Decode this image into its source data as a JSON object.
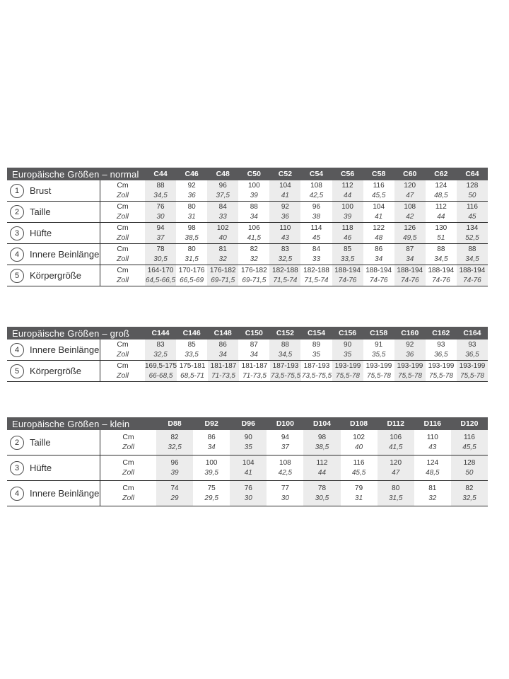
{
  "colors": {
    "header_bar": "#59595b",
    "header_text": "#ffffff",
    "stripe": "#ececec",
    "line": "#2b2b2b",
    "text": "#333333"
  },
  "unit_labels": {
    "cm": "Cm",
    "zoll": "Zoll"
  },
  "tables": [
    {
      "title": "Europäische Größen – normal",
      "columns": [
        "C44",
        "C46",
        "C48",
        "C50",
        "C52",
        "C54",
        "C56",
        "C58",
        "C60",
        "C62",
        "C64"
      ],
      "rows": [
        {
          "number": "1",
          "label": "Brust",
          "cm": [
            "88",
            "92",
            "96",
            "100",
            "104",
            "108",
            "112",
            "116",
            "120",
            "124",
            "128"
          ],
          "zoll": [
            "34,5",
            "36",
            "37,5",
            "39",
            "41",
            "42,5",
            "44",
            "45,5",
            "47",
            "48,5",
            "50"
          ]
        },
        {
          "number": "2",
          "label": "Taille",
          "cm": [
            "76",
            "80",
            "84",
            "88",
            "92",
            "96",
            "100",
            "104",
            "108",
            "112",
            "116"
          ],
          "zoll": [
            "30",
            "31",
            "33",
            "34",
            "36",
            "38",
            "39",
            "41",
            "42",
            "44",
            "45"
          ]
        },
        {
          "number": "3",
          "label": "Hüfte",
          "cm": [
            "94",
            "98",
            "102",
            "106",
            "110",
            "114",
            "118",
            "122",
            "126",
            "130",
            "134"
          ],
          "zoll": [
            "37",
            "38,5",
            "40",
            "41,5",
            "43",
            "45",
            "46",
            "48",
            "49,5",
            "51",
            "52,5"
          ]
        },
        {
          "number": "4",
          "label": "Innere Beinlänge",
          "cm": [
            "78",
            "80",
            "81",
            "82",
            "83",
            "84",
            "85",
            "86",
            "87",
            "88",
            "88"
          ],
          "zoll": [
            "30,5",
            "31,5",
            "32",
            "32",
            "32,5",
            "33",
            "33,5",
            "34",
            "34",
            "34,5",
            "34,5"
          ]
        },
        {
          "number": "5",
          "label": "Körpergröße",
          "cm": [
            "164-170",
            "170-176",
            "176-182",
            "176-182",
            "182-188",
            "182-188",
            "188-194",
            "188-194",
            "188-194",
            "188-194",
            "188-194"
          ],
          "zoll": [
            "64,5-66,5",
            "66,5-69",
            "69-71,5",
            "69-71,5",
            "71,5-74",
            "71,5-74",
            "74-76",
            "74-76",
            "74-76",
            "74-76",
            "74-76"
          ]
        }
      ]
    },
    {
      "title": "Europäische Größen – groß",
      "columns": [
        "C144",
        "C146",
        "C148",
        "C150",
        "C152",
        "C154",
        "C156",
        "C158",
        "C160",
        "C162",
        "C164"
      ],
      "rows": [
        {
          "number": "4",
          "label": "Innere Beinlänge",
          "cm": [
            "83",
            "85",
            "86",
            "87",
            "88",
            "89",
            "90",
            "91",
            "92",
            "93",
            "93"
          ],
          "zoll": [
            "32,5",
            "33,5",
            "34",
            "34",
            "34,5",
            "35",
            "35",
            "35,5",
            "36",
            "36,5",
            "36,5"
          ]
        },
        {
          "number": "5",
          "label": "Körpergröße",
          "cm": [
            "169,5-175",
            "175-181",
            "181-187",
            "181-187",
            "187-193",
            "187-193",
            "193-199",
            "193-199",
            "193-199",
            "193-199",
            "193-199"
          ],
          "zoll": [
            "66-68,5",
            "68,5-71",
            "71-73,5",
            "71-73,5",
            "73,5-75,5",
            "73,5-75,5",
            "75,5-78",
            "75,5-78",
            "75,5-78",
            "75,5-78",
            "75,5-78"
          ]
        }
      ]
    },
    {
      "title": "Europäische Größen – klein",
      "columns": [
        "D88",
        "D92",
        "D96",
        "D100",
        "D104",
        "D108",
        "D112",
        "D116",
        "D120"
      ],
      "rows": [
        {
          "number": "2",
          "label": "Taille",
          "cm": [
            "82",
            "86",
            "90",
            "94",
            "98",
            "102",
            "106",
            "110",
            "116"
          ],
          "zoll": [
            "32,5",
            "34",
            "35",
            "37",
            "38,5",
            "40",
            "41,5",
            "43",
            "45,5"
          ]
        },
        {
          "number": "3",
          "label": "Hüfte",
          "cm": [
            "96",
            "100",
            "104",
            "108",
            "112",
            "116",
            "120",
            "124",
            "128"
          ],
          "zoll": [
            "39",
            "39,5",
            "41",
            "42,5",
            "44",
            "45,5",
            "47",
            "48,5",
            "50"
          ]
        },
        {
          "number": "4",
          "label": "Innere Beinlänge",
          "cm": [
            "74",
            "75",
            "76",
            "77",
            "78",
            "79",
            "80",
            "81",
            "82"
          ],
          "zoll": [
            "29",
            "29,5",
            "30",
            "30",
            "30,5",
            "31",
            "31,5",
            "32",
            "32,5"
          ]
        }
      ]
    }
  ]
}
